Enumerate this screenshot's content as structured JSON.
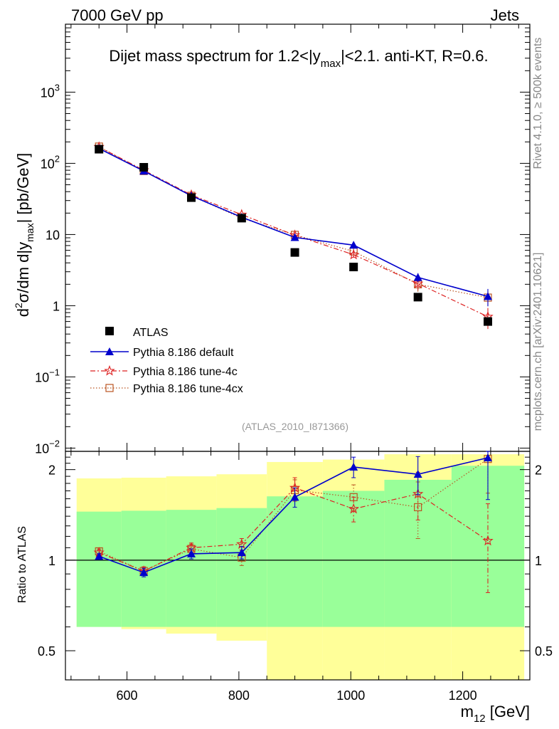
{
  "header": {
    "left": "7000 GeV pp",
    "right": "Jets"
  },
  "side_text": {
    "top": "Rivet 4.1.0, ≥ 500k events",
    "bottom": "mcplots.cern.ch [arXiv:2401.10621]"
  },
  "chart_data": {
    "type": "scatter",
    "title": "Dijet mass spectrum for 1.2<|y_max|<2.1.  anti-KT, R=0.6.",
    "title_parts": {
      "a": "Dijet mass spectrum for 1.2<|y",
      "sub": "max",
      "b": "|<2.1.  anti-KT, R=0.6."
    },
    "analysis_id": "(ATLAS_2010_I871366)",
    "xlabel": "m_12 [GeV]",
    "xlabel_parts": {
      "a": "m",
      "sub": "12",
      "b": " [GeV]"
    },
    "ylabel": "d²σ/dm d|y_max| [pb/GeV]",
    "ylabel_parts": {
      "a": "d",
      "sup": "2",
      "b": "σ/dm d|y",
      "sub": "max",
      "c": "| [pb/GeV]"
    },
    "ratio_ylabel": "Ratio to ATLAS",
    "xlim": [
      490,
      1320
    ],
    "ylim_main": [
      0.009,
      9000
    ],
    "ylim_ratio": [
      0.4,
      2.3
    ],
    "x_ticks": [
      "600",
      "800",
      "1000",
      "1200"
    ],
    "y_ticks_main": [
      {
        "v": 1000,
        "m": "10",
        "e": "3"
      },
      {
        "v": 100,
        "m": "10",
        "e": "2"
      },
      {
        "v": 10,
        "m": "10",
        "e": ""
      },
      {
        "v": 1,
        "m": "1",
        "e": ""
      },
      {
        "v": 0.1,
        "m": "10",
        "e": "−1"
      },
      {
        "v": 0.01,
        "m": "10",
        "e": "−2"
      }
    ],
    "y_ticks_ratio": [
      {
        "v": 2,
        "t": "2"
      },
      {
        "v": 1,
        "t": "1"
      },
      {
        "v": 0.5,
        "t": "0.5"
      }
    ],
    "x": [
      550,
      630,
      715,
      805,
      900,
      1005,
      1120,
      1245
    ],
    "bins": [
      [
        510,
        590
      ],
      [
        590,
        670
      ],
      [
        670,
        760
      ],
      [
        760,
        850
      ],
      [
        850,
        950
      ],
      [
        950,
        1060
      ],
      [
        1060,
        1180
      ],
      [
        1180,
        1310
      ]
    ],
    "band_yellow": [
      [
        0.6,
        1.87
      ],
      [
        0.59,
        1.88
      ],
      [
        0.57,
        1.9
      ],
      [
        0.54,
        1.93
      ],
      [
        0.4,
        2.12
      ],
      [
        0.38,
        2.16
      ],
      [
        0.38,
        2.25
      ],
      [
        0.38,
        2.25
      ]
    ],
    "band_green": [
      [
        0.6,
        1.45
      ],
      [
        0.6,
        1.46
      ],
      [
        0.6,
        1.47
      ],
      [
        0.6,
        1.49
      ],
      [
        0.6,
        1.63
      ],
      [
        0.6,
        1.7
      ],
      [
        0.6,
        1.85
      ],
      [
        0.6,
        2.06
      ]
    ],
    "legend": {
      "atlas": "ATLAS",
      "default": "Pythia 8.186 default",
      "tune4c": "Pythia 8.186 tune-4c",
      "tune4cx": "Pythia 8.186 tune-4cx"
    },
    "series": [
      {
        "name": "ATLAS",
        "color": "#000000",
        "values": [
          158,
          88,
          33,
          17,
          5.6,
          3.5,
          1.32,
          0.6
        ]
      },
      {
        "name": "Pythia 8.186 default",
        "color": "#0000cc",
        "values": [
          162,
          78,
          35,
          17.5,
          9.1,
          7.1,
          2.5,
          1.35
        ],
        "ratio": [
          1.03,
          0.91,
          1.05,
          1.06,
          1.62,
          2.04,
          1.93,
          2.19
        ],
        "ratio_err": [
          0.02,
          0.03,
          0.04,
          0.05,
          0.12,
          0.16,
          0.28,
          0.6
        ]
      },
      {
        "name": "Pythia 8.186 tune-4c",
        "color": "#dd2222",
        "values": [
          170,
          80,
          36,
          19,
          9.8,
          5.2,
          2.05,
          0.7
        ],
        "ratio": [
          1.06,
          0.92,
          1.1,
          1.13,
          1.74,
          1.48,
          1.66,
          1.16
        ],
        "ratio_err": [
          0.02,
          0.03,
          0.04,
          0.05,
          0.14,
          0.14,
          0.3,
          0.38
        ]
      },
      {
        "name": "Pythia 8.186 tune-4cx",
        "color": "#bb5522",
        "values": [
          172,
          78,
          35,
          17,
          9.9,
          5.8,
          2.0,
          1.3
        ],
        "ratio": [
          1.07,
          0.92,
          1.09,
          1.02,
          1.71,
          1.62,
          1.5,
          2.17
        ],
        "ratio_err": [
          0.02,
          0.03,
          0.04,
          0.06,
          0.14,
          0.16,
          0.32,
          0.5
        ]
      }
    ]
  }
}
